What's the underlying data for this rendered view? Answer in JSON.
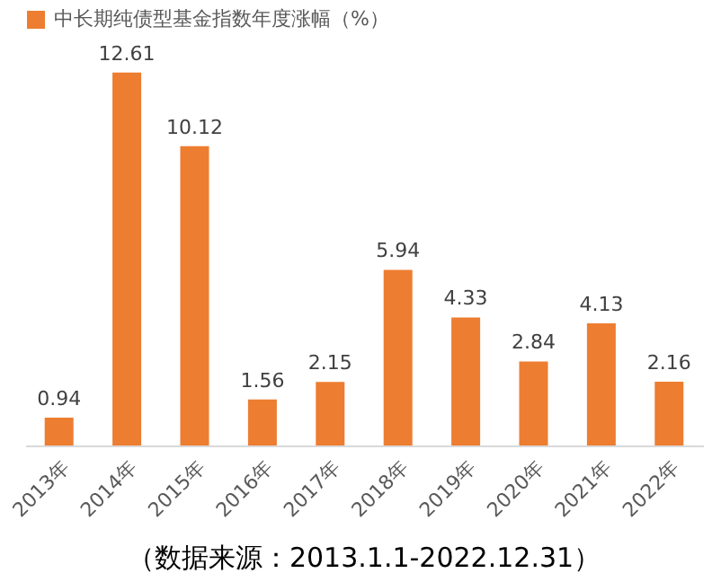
{
  "chart_data": {
    "type": "bar",
    "categories": [
      "2013年",
      "2014年",
      "2015年",
      "2016年",
      "2017年",
      "2018年",
      "2019年",
      "2020年",
      "2021年",
      "2022年"
    ],
    "series": [
      {
        "name": "中长期纯债型基金指数年度涨幅（%）",
        "color": "#ed7d31",
        "values": [
          0.94,
          12.61,
          10.12,
          1.56,
          2.15,
          5.94,
          4.33,
          2.84,
          4.13,
          2.16
        ]
      }
    ],
    "tick_labels": "x",
    "data_labels": true,
    "legend": "top",
    "grid": false,
    "annotations": [
      "（数据来源：2013.1.1-2022.12.31）"
    ]
  }
}
